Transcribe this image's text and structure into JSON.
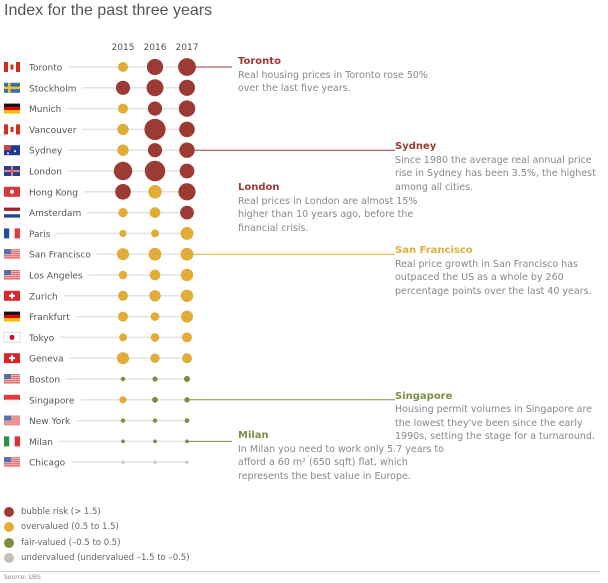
{
  "title": "Index for the past three years",
  "chart_data": {
    "type": "scatter",
    "title": "Index for the past three years",
    "years": [
      "2015",
      "2016",
      "2017"
    ],
    "cities": [
      {
        "name": "Toronto",
        "flag": "canada",
        "values": [
          1.0,
          1.9,
          2.12
        ]
      },
      {
        "name": "Stockholm",
        "flag": "sweden",
        "values": [
          1.6,
          2.0,
          1.87
        ]
      },
      {
        "name": "Munich",
        "flag": "germany",
        "values": [
          1.0,
          1.6,
          1.92
        ]
      },
      {
        "name": "Vancouver",
        "flag": "canada",
        "values": [
          1.2,
          2.6,
          1.8
        ]
      },
      {
        "name": "Sydney",
        "flag": "australia",
        "values": [
          1.2,
          1.6,
          1.77
        ]
      },
      {
        "name": "London",
        "flag": "uk",
        "values": [
          2.2,
          2.5,
          1.67
        ]
      },
      {
        "name": "Hong Kong",
        "flag": "hongkong",
        "values": [
          1.8,
          1.5,
          2.03
        ]
      },
      {
        "name": "Amsterdam",
        "flag": "netherlands",
        "values": [
          0.9,
          1.1,
          1.54
        ]
      },
      {
        "name": "Paris",
        "flag": "france",
        "values": [
          0.6,
          0.7,
          1.42
        ]
      },
      {
        "name": "San Francisco",
        "flag": "usa",
        "values": [
          1.3,
          1.4,
          1.41
        ]
      },
      {
        "name": "Los Angeles",
        "flag": "usa",
        "values": [
          0.8,
          1.1,
          1.36
        ]
      },
      {
        "name": "Zurich",
        "flag": "switzerland",
        "values": [
          1.0,
          1.2,
          1.35
        ]
      },
      {
        "name": "Frankfurt",
        "flag": "germany",
        "values": [
          1.0,
          0.8,
          1.29
        ]
      },
      {
        "name": "Tokyo",
        "flag": "japan",
        "values": [
          0.7,
          0.8,
          1.0
        ]
      },
      {
        "name": "Geneva",
        "flag": "switzerland",
        "values": [
          1.3,
          0.9,
          1.0
        ]
      },
      {
        "name": "Boston",
        "flag": "usa",
        "values": [
          0.2,
          0.3,
          0.45
        ]
      },
      {
        "name": "Singapore",
        "flag": "singapore",
        "values": [
          0.6,
          0.4,
          0.35
        ]
      },
      {
        "name": "New York",
        "flag": "usa",
        "values": [
          0.2,
          0.2,
          0.25
        ]
      },
      {
        "name": "Milan",
        "flag": "italy",
        "values": [
          0.1,
          0.1,
          0.1
        ]
      },
      {
        "name": "Chicago",
        "flag": "usa",
        "values": [
          -0.6,
          -0.6,
          -0.6
        ]
      }
    ],
    "categories": [
      {
        "label": "bubble risk  (> 1.5)",
        "color": "#9b3b34"
      },
      {
        "label": "overvalued (0.5 to 1.5)",
        "color": "#e1ad37"
      },
      {
        "label": "fair-valued (–0.5 to 0.5)",
        "color": "#7b8f3f"
      },
      {
        "label": "undervalued (undervalued –1.5 to –0.5)",
        "color": "#c6bfb8"
      }
    ]
  },
  "annotations": [
    {
      "city": "Toronto",
      "heading": "Toronto",
      "text": "Real housing prices in Toronto rose 50% over the last five years.",
      "color": "#9b3b34"
    },
    {
      "city": "Sydney",
      "heading": "Sydney",
      "text": "Since 1980 the average real annual price rise in Sydney has been 3.5%, the highest among all cities.",
      "color": "#9b3b34"
    },
    {
      "city": "London",
      "heading": "London",
      "text": "Real prices in London are almost 15% higher than 10 years ago, before the financial crisis.",
      "color": "#9b3b34"
    },
    {
      "city": "San Francisco",
      "heading": "San Francisco",
      "text": "Real price growth in San Francisco has outpaced the US as a whole by 260 percentage points over the last 40 years.",
      "color": "#e1ad37"
    },
    {
      "city": "Singapore",
      "heading": "Singapore",
      "text": "Housing permit volumes in Singapore are the lowest they've been since the early 1990s, setting the stage for a turnaround.",
      "color": "#7b8f3f"
    },
    {
      "city": "Milan",
      "heading": "Milan",
      "text": "In Milan you need to work only 5.7 years to afford a 60 m² (650 sqft) flat, which represents the best value in Europe.",
      "color": "#7b8f3f"
    }
  ],
  "source": "Source: UBS"
}
